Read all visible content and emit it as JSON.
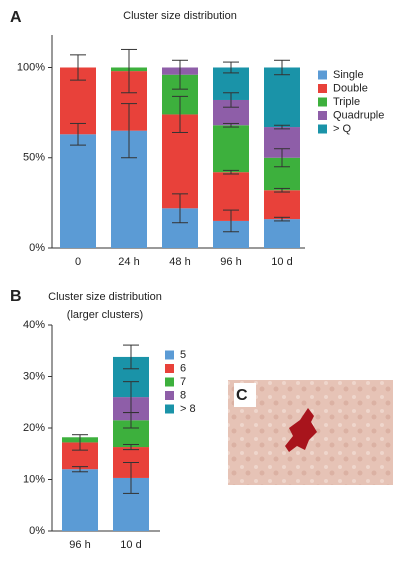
{
  "charts": [
    {
      "type": "bar",
      "stacked": true,
      "panel": "A",
      "title": "Cluster size distribution",
      "categories": [
        "0",
        "24 h",
        "48 h",
        "96 h",
        "10 d"
      ],
      "series": [
        {
          "name": "Single",
          "color": "#5b9bd5",
          "values": [
            63,
            65,
            22,
            15,
            16
          ],
          "errors": [
            6,
            15,
            8,
            6,
            1
          ]
        },
        {
          "name": "Double",
          "color": "#e8413a",
          "values": [
            37,
            33,
            52,
            27,
            16
          ],
          "errors": [
            7,
            12,
            10,
            1,
            1
          ]
        },
        {
          "name": "Triple",
          "color": "#3db03d",
          "values": [
            0,
            2,
            22,
            26,
            18
          ],
          "errors": [
            null,
            null,
            8,
            1,
            5
          ]
        },
        {
          "name": "Quadruple",
          "color": "#8e5ea8",
          "values": [
            0,
            0,
            4,
            14,
            17
          ],
          "errors": [
            null,
            null,
            null,
            4,
            1
          ]
        },
        {
          "name": "> Q",
          "color": "#1a93a8",
          "values": [
            0,
            0,
            0,
            18,
            33
          ],
          "errors": [
            null,
            null,
            null,
            3,
            4
          ]
        }
      ],
      "ylim": [
        0,
        118
      ],
      "yticks": [
        {
          "value": 0,
          "label": "0%"
        },
        {
          "value": 50,
          "label": "50%"
        },
        {
          "value": 100,
          "label": "100%"
        }
      ]
    },
    {
      "type": "bar",
      "stacked": true,
      "panel": "B",
      "title": "Cluster size distribution",
      "subtitle": "(larger clusters)",
      "categories": [
        "96 h",
        "10 d"
      ],
      "series": [
        {
          "name": "5",
          "color": "#5b9bd5",
          "values": [
            12,
            10.3
          ],
          "errors": [
            0.5,
            3
          ]
        },
        {
          "name": "6",
          "color": "#e8413a",
          "values": [
            5.2,
            6
          ],
          "errors": [
            1.5,
            0.5
          ]
        },
        {
          "name": "7",
          "color": "#3db03d",
          "values": [
            1,
            5.2
          ],
          "errors": [
            null,
            1.5
          ]
        },
        {
          "name": "8",
          "color": "#8e5ea8",
          "values": [
            0,
            4.5
          ],
          "errors": [
            null,
            3
          ]
        },
        {
          "name": "> 8",
          "color": "#1a93a8",
          "values": [
            0,
            7.8
          ],
          "errors": [
            null,
            2.3
          ]
        }
      ],
      "ylim": [
        0,
        40
      ],
      "yticks": [
        {
          "value": 0,
          "label": "0%"
        },
        {
          "value": 10,
          "label": "10%"
        },
        {
          "value": 20,
          "label": "20%"
        },
        {
          "value": 30,
          "label": "30%"
        },
        {
          "value": 40,
          "label": "40%"
        }
      ]
    }
  ],
  "image_panel": {
    "label": "C"
  }
}
